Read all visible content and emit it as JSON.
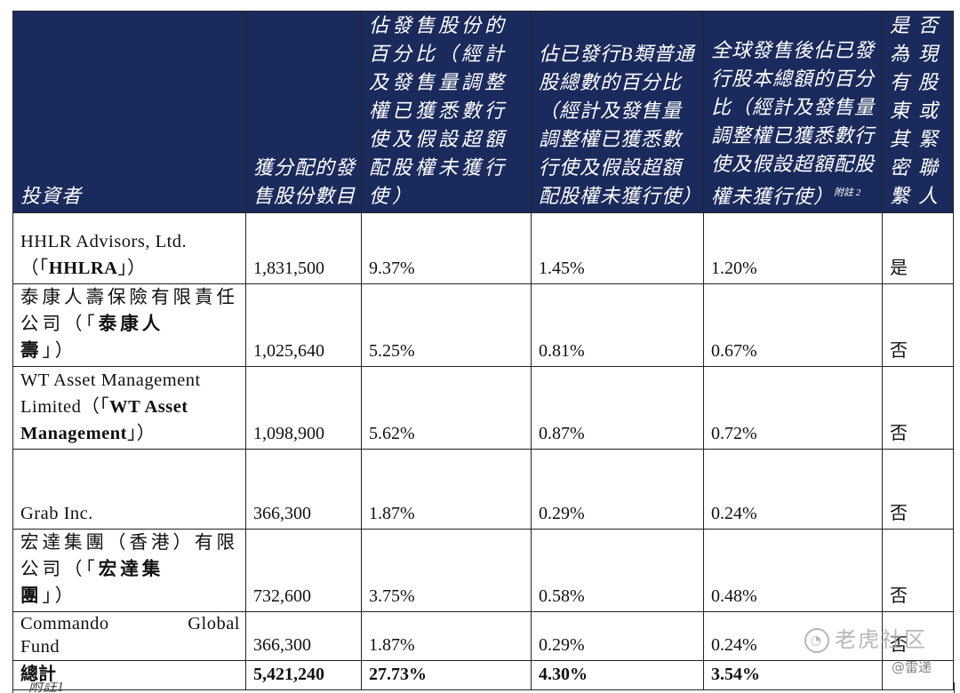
{
  "headers": {
    "investor": "投資者",
    "shares": "獲分配的發售股份數目",
    "pct_offer": "佔發售股份的百分比（經計及發售量調整權已獲悉數行使及假設超額配股權未獲行使）",
    "pct_classb": "佔已發行B類普通股總數的百分比（經計及發售量調整權已獲悉數行使及假設超額配股權未獲行使）",
    "pct_global": "全球發售後佔已發行股本總額的百分比（經計及發售量調整權已獲悉數行使及假設超額配股權未獲行使）",
    "pct_global_note": "附註 2",
    "existing": "是否為現有股東或其緊密聯繫人"
  },
  "rows": [
    {
      "name_a": "HHLR Advisors, Ltd.",
      "name_pre": "（「",
      "name_bold": "HHLRA",
      "name_post": "」）",
      "shares": "1,831,500",
      "pct_offer": "9.37%",
      "pct_classb": "1.45%",
      "pct_global": "1.20%",
      "existing": "是"
    },
    {
      "name_a": "泰康人壽保險有限責任公司（「",
      "name_bold1": "泰康人",
      "name_bold2": "壽",
      "name_post": "」）",
      "shares": "1,025,640",
      "pct_offer": "5.25%",
      "pct_classb": "0.81%",
      "pct_global": "0.67%",
      "existing": "否"
    },
    {
      "name_a": "WT Asset Management",
      "name_b": "Limited（「",
      "name_bold1": "WT Asset",
      "name_bold2": "Management",
      "name_post": "」）",
      "shares": "1,098,900",
      "pct_offer": "5.62%",
      "pct_classb": "0.87%",
      "pct_global": "0.72%",
      "existing": "否"
    },
    {
      "name_a": "Grab Inc.",
      "shares": "366,300",
      "pct_offer": "1.87%",
      "pct_classb": "0.29%",
      "pct_global": "0.24%",
      "existing": "否"
    },
    {
      "name_a": "宏達集團（香港）有限公司（「",
      "name_bold1": "宏達集",
      "name_bold2": "團",
      "name_post": "」）",
      "shares": "732,600",
      "pct_offer": "3.75%",
      "pct_classb": "0.58%",
      "pct_global": "0.48%",
      "existing": "否"
    },
    {
      "name_a1": "Commando",
      "name_a2": "Global",
      "name_b": "Fund",
      "shares": "366,300",
      "pct_offer": "1.87%",
      "pct_classb": "0.29%",
      "pct_global": "0.24%",
      "existing": "否"
    }
  ],
  "total": {
    "label": "總計",
    "shares": "5,421,240",
    "pct_offer": "27.73%",
    "pct_classb": "4.30%",
    "pct_global": "3.54%"
  },
  "footnote": "附註1",
  "watermark": {
    "text": "老虎社区",
    "handle": "@雷递"
  }
}
